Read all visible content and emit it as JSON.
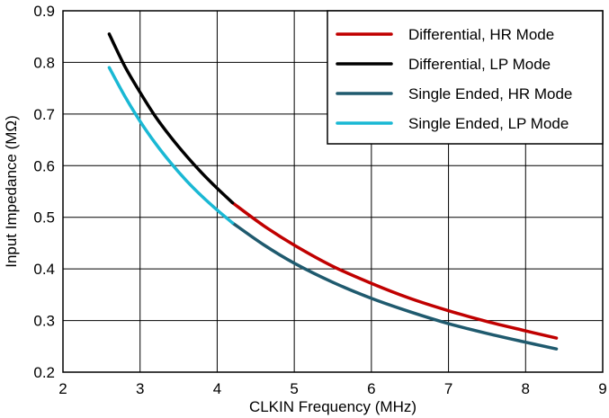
{
  "chart_data": {
    "type": "line",
    "title": "",
    "xlabel": "CLKIN Frequency (MHz)",
    "ylabel": "Input Impedance (MΩ)",
    "xlim": [
      2,
      9
    ],
    "ylim": [
      0.2,
      0.9
    ],
    "xticks": [
      2,
      3,
      4,
      5,
      6,
      7,
      8,
      9
    ],
    "yticks": [
      0.2,
      0.3,
      0.4,
      0.5,
      0.6,
      0.7,
      0.8,
      0.9
    ],
    "grid": true,
    "legend_position": "top-right",
    "series": [
      {
        "name": "Differential, HR Mode",
        "color": "#c00000",
        "x": [
          4.2,
          4.6,
          5.0,
          5.5,
          6.0,
          6.5,
          7.0,
          7.5,
          8.0,
          8.4
        ],
        "y": [
          0.528,
          0.484,
          0.446,
          0.405,
          0.372,
          0.343,
          0.319,
          0.298,
          0.28,
          0.266
        ]
      },
      {
        "name": "Differential, LP Mode",
        "color": "#000000",
        "x": [
          2.6,
          2.8,
          3.0,
          3.2,
          3.4,
          3.6,
          3.8,
          4.0,
          4.2
        ],
        "y": [
          0.855,
          0.793,
          0.742,
          0.695,
          0.655,
          0.619,
          0.586,
          0.556,
          0.528
        ]
      },
      {
        "name": "Single Ended, HR Mode",
        "color": "#1f5a6e",
        "x": [
          4.2,
          4.6,
          5.0,
          5.5,
          6.0,
          6.5,
          7.0,
          7.5,
          8.0,
          8.4
        ],
        "y": [
          0.489,
          0.447,
          0.411,
          0.374,
          0.343,
          0.317,
          0.294,
          0.275,
          0.258,
          0.245
        ]
      },
      {
        "name": "Single Ended, LP Mode",
        "color": "#1ab8d4",
        "x": [
          2.6,
          2.8,
          3.0,
          3.2,
          3.4,
          3.6,
          3.8,
          4.0,
          4.2
        ],
        "y": [
          0.79,
          0.735,
          0.686,
          0.643,
          0.605,
          0.571,
          0.541,
          0.514,
          0.489
        ]
      }
    ]
  }
}
